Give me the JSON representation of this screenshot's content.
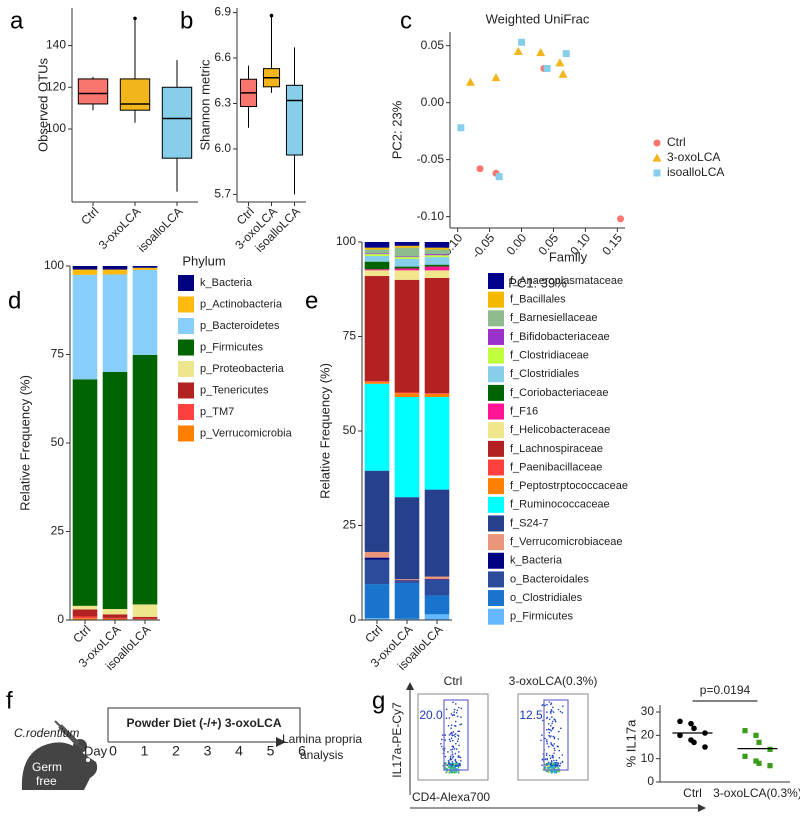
{
  "chart_data": [
    {
      "panel": "a",
      "type": "box",
      "ylabel": "Observed OTUs",
      "categories": [
        "Ctrl",
        "3-oxoLCA",
        "isoalloLCA"
      ],
      "boxes": [
        {
          "min": 109,
          "q1": 112,
          "median": 117,
          "q3": 124,
          "max": 125,
          "color": "#F8766D"
        },
        {
          "min": 103,
          "q1": 109,
          "median": 112,
          "q3": 124,
          "max": 153,
          "color": "#F2B61C"
        },
        {
          "min": 70,
          "q1": 86,
          "median": 105,
          "q3": 120,
          "max": 133,
          "color": "#87CEEB"
        }
      ],
      "ylim": [
        65,
        158
      ],
      "yticks": [
        100,
        120,
        140
      ]
    },
    {
      "panel": "b",
      "type": "box",
      "ylabel": "Shannon metric",
      "categories": [
        "Ctrl",
        "3-oxoLCA",
        "isoalloLCA"
      ],
      "boxes": [
        {
          "min": 6.14,
          "q1": 6.28,
          "median": 6.37,
          "q3": 6.46,
          "max": 6.55,
          "color": "#F8766D"
        },
        {
          "min": 6.37,
          "q1": 6.41,
          "median": 6.47,
          "q3": 6.53,
          "max": 6.88,
          "color": "#F2B61C"
        },
        {
          "min": 5.7,
          "q1": 5.96,
          "median": 6.32,
          "q3": 6.42,
          "max": 6.67,
          "color": "#87CEEB"
        }
      ],
      "ylim": [
        5.65,
        6.93
      ],
      "yticks": [
        5.7,
        {
          "value": 6,
          "label": "6.0"
        },
        6.3,
        6.6,
        6.9
      ]
    },
    {
      "panel": "c",
      "type": "scatter",
      "title": "Weighted UniFrac",
      "xlabel": "PC1: 39%",
      "ylabel": "PC2: 23%",
      "legend": "right",
      "series": [
        {
          "name": "Ctrl",
          "color": "#F8766D",
          "marker": "circle",
          "x": [
            -0.065,
            -0.04,
            0.035,
            0.155
          ],
          "y": [
            -0.058,
            -0.062,
            0.03,
            -0.102
          ]
        },
        {
          "name": "3-oxoLCA",
          "color": "#F2B61C",
          "marker": "triangle",
          "x": [
            -0.08,
            -0.04,
            -0.005,
            0.03,
            0.06,
            0.065
          ],
          "y": [
            0.018,
            0.022,
            0.045,
            0.044,
            0.035,
            0.025
          ]
        },
        {
          "name": "isoalloLCA",
          "color": "#87CEEB",
          "marker": "square",
          "x": [
            -0.095,
            -0.035,
            0.0,
            0.04,
            0.07
          ],
          "y": [
            -0.022,
            -0.065,
            0.053,
            0.03,
            0.043
          ]
        }
      ],
      "xlim": [
        -0.112,
        0.162
      ],
      "ylim": [
        -0.11,
        0.062
      ],
      "xticks": [
        {
          "value": -0.1,
          "label": "-0.10"
        },
        -0.05,
        {
          "value": 0,
          "label": "0.00"
        },
        0.05,
        {
          "value": 0.1,
          "label": "0.10"
        },
        0.15
      ],
      "yticks": [
        {
          "value": -0.1,
          "label": "-0.10"
        },
        -0.05,
        {
          "value": 0,
          "label": "0.00"
        },
        0.05
      ]
    },
    {
      "panel": "d",
      "type": "stacked_bar",
      "ylabel": "Relative Frequency (%)",
      "legend_title": "Phylum",
      "categories": [
        "Ctrl",
        "3-oxoLCA",
        "isoalloLCA"
      ],
      "series": [
        {
          "name": "k_Bacteria",
          "color": "#000080",
          "values": [
            1,
            1,
            0.5
          ]
        },
        {
          "name": "p_Actinobacteria",
          "color": "#FFB90F",
          "values": [
            1.5,
            1.4,
            0.6
          ]
        },
        {
          "name": "p_Bacteroidetes",
          "color": "#87CEFA",
          "values": [
            29.5,
            27.5,
            24
          ]
        },
        {
          "name": "p_Firmicutes",
          "color": "#006400",
          "values": [
            64,
            67,
            70.5
          ]
        },
        {
          "name": "p_Proteobacteria",
          "color": "#EEE68C",
          "values": [
            1,
            1.5,
            3.5
          ]
        },
        {
          "name": "p_Tenericutes",
          "color": "#B22222",
          "values": [
            2,
            1,
            0.5
          ]
        },
        {
          "name": "p_TM7",
          "color": "#FF4040",
          "values": [
            0.5,
            0.3,
            0.2
          ]
        },
        {
          "name": "p_Verrucomicrobia",
          "color": "#FF7F00",
          "values": [
            0.5,
            0.3,
            0.2
          ]
        }
      ],
      "ylim": [
        0,
        100
      ],
      "yticks": [
        0,
        25,
        50,
        75,
        100
      ]
    },
    {
      "panel": "e",
      "type": "stacked_bar",
      "ylabel": "Relative Frequency (%)",
      "legend_title": "Family",
      "categories": [
        "Ctrl",
        "3-oxoLCA",
        "isoalloLCA"
      ],
      "series": [
        {
          "name": "f_Anaeroplasmataceae",
          "color": "#00008B",
          "values": [
            1.5,
            1,
            1.5
          ]
        },
        {
          "name": "f_Bacillales",
          "color": "#F5B800",
          "values": [
            0.5,
            0.5,
            0.5
          ]
        },
        {
          "name": "f_Barnesiellaceae",
          "color": "#8FBC8F",
          "values": [
            1,
            2.3,
            1.2
          ]
        },
        {
          "name": "f_Bifidobacteriaceae",
          "color": "#9932CC",
          "values": [
            0.2,
            0.2,
            0.3
          ]
        },
        {
          "name": "f_Clostridiaceae",
          "color": "#C0FF3E",
          "values": [
            0.5,
            0.5,
            0.5
          ]
        },
        {
          "name": "f_Clostridiales",
          "color": "#87CEEB",
          "values": [
            1.5,
            2,
            2
          ]
        },
        {
          "name": "f_Coriobacteriaceae",
          "color": "#006400",
          "values": [
            2,
            0.5,
            0.5
          ]
        },
        {
          "name": "f_F16",
          "color": "#FF1493",
          "values": [
            0.3,
            0.5,
            1
          ]
        },
        {
          "name": "f_Helicobacteraceae",
          "color": "#F0E68C",
          "values": [
            1.5,
            2.5,
            2
          ]
        },
        {
          "name": "f_Lachnospiraceae",
          "color": "#B22222",
          "values": [
            27.8,
            29.8,
            30.5
          ]
        },
        {
          "name": "f_Paenibacillaceae",
          "color": "#FF4040",
          "values": [
            0.2,
            0.2,
            0.2
          ]
        },
        {
          "name": "f_Peptostrptococcaceae",
          "color": "#FF7F00",
          "values": [
            0.5,
            1,
            0.8
          ]
        },
        {
          "name": "f_Ruminococcaceae",
          "color": "#00FFFF",
          "values": [
            23,
            26.5,
            24.5
          ]
        },
        {
          "name": "f_S24-7",
          "color": "#27408B",
          "values": [
            21.5,
            21.7,
            23
          ]
        },
        {
          "name": "f_Verrucomicrobiaceae",
          "color": "#E9967A",
          "values": [
            1.5,
            0.3,
            0.7
          ]
        },
        {
          "name": "k_Bacteria",
          "color": "#000080",
          "values": [
            0.5,
            0.2,
            0.3
          ]
        },
        {
          "name": "o_Bacteroidales",
          "color": "#2B4C9B",
          "values": [
            6.5,
            0.5,
            4
          ]
        },
        {
          "name": "o_Clostridiales",
          "color": "#1874CD",
          "values": [
            9,
            9.5,
            5
          ]
        },
        {
          "name": "p_Firmicutes",
          "color": "#63B8FF",
          "values": [
            0.5,
            0.3,
            1.5
          ]
        }
      ],
      "ylim": [
        0,
        100
      ],
      "yticks": [
        0,
        25,
        50,
        75,
        100
      ]
    },
    {
      "type": "dot",
      "ylabel": "% IL17a",
      "categories": [
        "Ctrl",
        "3-oxoLCA(0.3%)"
      ],
      "colors": [
        "#000000",
        "#3A9A1A"
      ],
      "points": [
        [
          26,
          25,
          23,
          21,
          20,
          18,
          17,
          15
        ],
        [
          22,
          20,
          17,
          14,
          11,
          9,
          8,
          7
        ]
      ],
      "means": [
        21,
        14.3
      ],
      "annotation": "p=0.0194",
      "ylim": [
        0,
        33
      ],
      "yticks": [
        0,
        10,
        20,
        30
      ]
    }
  ],
  "panel_f": {
    "panel": "f",
    "organism": "C.rodentium",
    "mouse_label": [
      "Germ",
      "free"
    ],
    "day_label": "Day",
    "days": [
      0,
      1,
      2,
      3,
      4,
      5,
      6
    ],
    "treatment": "Powder Diet (-/+) 3-oxoLCA",
    "readout": [
      "Lamina propria",
      "analysis"
    ]
  },
  "panel_g_flow": {
    "panel": "g",
    "y_label": "IL17a-PE-Cy7",
    "x_label": "CD4-Alexa700",
    "titles": [
      "Ctrl",
      "3-oxoLCA(0.3%)"
    ],
    "values": [
      20,
      12.5
    ],
    "value_labels": [
      "20.0",
      "12.5"
    ]
  }
}
